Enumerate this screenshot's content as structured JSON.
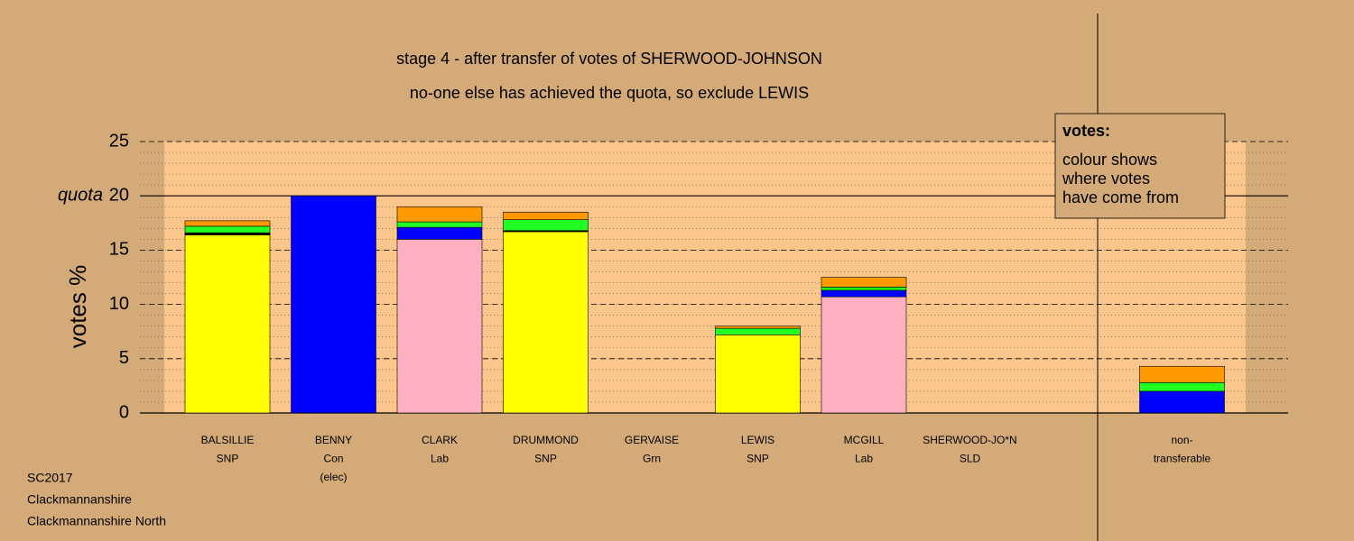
{
  "chart_data": {
    "type": "stacked-bar",
    "title": "stage 4 - after transfer of votes of SHERWOOD-JOHNSON",
    "subtitle": "no-one else has achieved the quota, so exclude LEWIS",
    "ylabel": "votes %",
    "categories": [
      [
        "BALSILLIE",
        "SNP"
      ],
      [
        "BENNY",
        "Con",
        "(elec)"
      ],
      [
        "CLARK",
        "Lab"
      ],
      [
        "DRUMMOND",
        "SNP"
      ],
      [
        "GERVAISE",
        "Grn"
      ],
      [
        "LEWIS",
        "SNP"
      ],
      [
        "MCGILL",
        "Lab"
      ],
      [
        "SHERWOOD-JO*N",
        "SLD"
      ],
      null,
      [
        "non-",
        "transferable"
      ]
    ],
    "series": [
      {
        "color": "#ffff00",
        "values": [
          16.4,
          0,
          0,
          16.7,
          0,
          7.2,
          0,
          0,
          null,
          0
        ]
      },
      {
        "color": "#ffb0c0",
        "values": [
          0,
          0,
          16.0,
          0,
          0,
          0,
          10.7,
          0,
          null,
          0
        ]
      },
      {
        "color": "#0000ff",
        "values": [
          0,
          20,
          1.1,
          0,
          0,
          0,
          0.6,
          0,
          null,
          2.0
        ]
      },
      {
        "color": "#000000",
        "values": [
          0.2,
          0,
          0,
          0.1,
          0,
          0,
          0,
          0,
          null,
          0
        ]
      },
      {
        "color": "#22ff22",
        "values": [
          0.6,
          0,
          0.5,
          1.0,
          0,
          0.6,
          0.3,
          0,
          null,
          0.8
        ]
      },
      {
        "color": "#ff9900",
        "values": [
          0.5,
          0,
          1.4,
          0.7,
          0,
          0.2,
          0.9,
          0,
          null,
          1.5
        ]
      }
    ],
    "ylim": [
      0,
      25
    ],
    "yticks": [
      0,
      5,
      10,
      15,
      20,
      25
    ],
    "minor_ytick_step": 1,
    "grid": true,
    "quota": 20,
    "quota_label": "quota",
    "legend": {
      "title": "votes:",
      "lines": [
        "colour shows",
        "where votes",
        "have come from"
      ]
    },
    "footer": [
      "SC2017",
      "Clackmannanshire",
      "Clackmannanshire North"
    ]
  }
}
